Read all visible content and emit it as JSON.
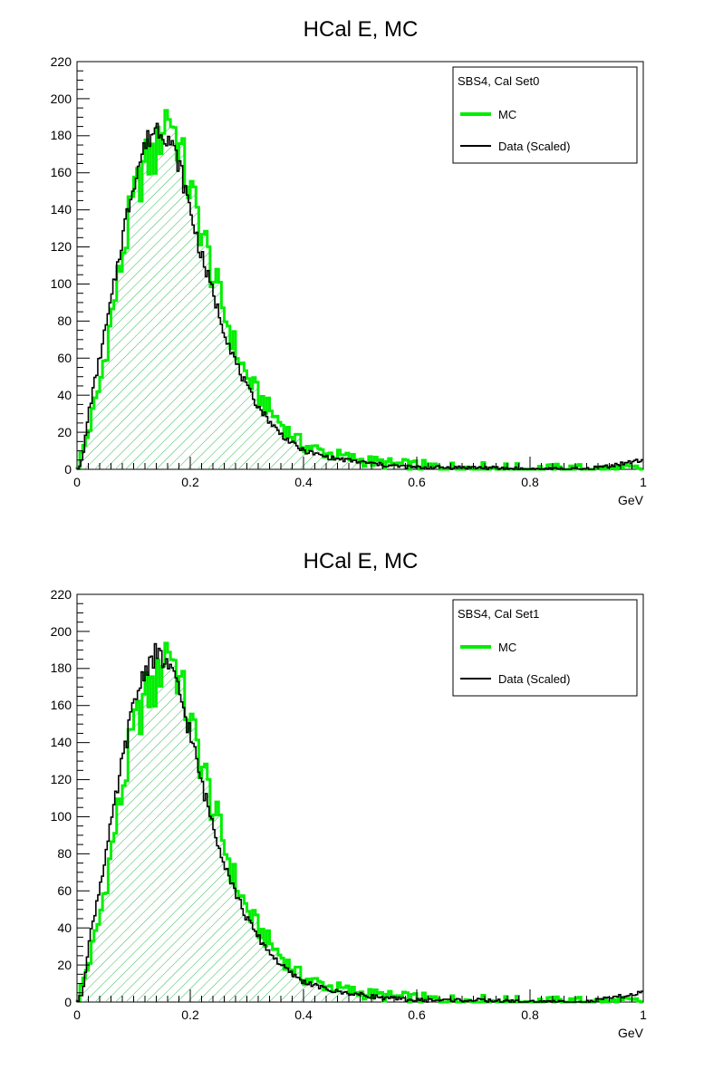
{
  "chart_data": [
    {
      "type": "histogram",
      "title": "HCal E, MC",
      "xlabel": "GeV",
      "ylabel": "",
      "xlim": [
        0,
        1
      ],
      "ylim": [
        0,
        220
      ],
      "xticks": [
        "0",
        "0.2",
        "0.4",
        "0.6",
        "0.8",
        "1"
      ],
      "yticks": [
        "0",
        "20",
        "40",
        "60",
        "80",
        "100",
        "120",
        "140",
        "160",
        "180",
        "200",
        "220"
      ],
      "legend": {
        "placement": "top-right",
        "header": "SBS4, Cal Set0",
        "entries": [
          {
            "label": "MC",
            "color": "#00ee00"
          },
          {
            "label": "Data (Scaled)",
            "color": "#000000"
          }
        ]
      },
      "series": [
        {
          "name": "MC",
          "color": "#00ee00",
          "fill": "hatched-green",
          "x": [
            0.0,
            0.02,
            0.04,
            0.06,
            0.08,
            0.1,
            0.12,
            0.14,
            0.16,
            0.18,
            0.2,
            0.22,
            0.24,
            0.26,
            0.28,
            0.3,
            0.32,
            0.34,
            0.36,
            0.38,
            0.4,
            0.45,
            0.5,
            0.55,
            0.6,
            0.65,
            0.7,
            0.8,
            0.9,
            1.0
          ],
          "y": [
            0,
            20,
            45,
            80,
            115,
            145,
            165,
            170,
            195,
            175,
            150,
            130,
            105,
            85,
            65,
            50,
            40,
            32,
            25,
            18,
            13,
            8,
            5,
            3,
            2,
            1,
            1,
            0,
            0,
            0
          ]
        },
        {
          "name": "Data (Scaled)",
          "color": "#000000",
          "x": [
            0.0,
            0.01,
            0.02,
            0.04,
            0.06,
            0.08,
            0.1,
            0.12,
            0.14,
            0.16,
            0.18,
            0.2,
            0.22,
            0.24,
            0.26,
            0.28,
            0.3,
            0.32,
            0.34,
            0.36,
            0.38,
            0.4,
            0.45,
            0.5,
            0.55,
            0.6,
            0.65,
            0.7,
            0.8,
            0.9,
            1.0
          ],
          "y": [
            0,
            5,
            30,
            60,
            90,
            125,
            155,
            175,
            185,
            180,
            165,
            140,
            115,
            95,
            75,
            58,
            44,
            34,
            26,
            19,
            14,
            10,
            6,
            4,
            2,
            1,
            1,
            1,
            0,
            0,
            5
          ]
        }
      ]
    },
    {
      "type": "histogram",
      "title": "HCal E, MC",
      "xlabel": "GeV",
      "ylabel": "",
      "xlim": [
        0,
        1
      ],
      "ylim": [
        0,
        220
      ],
      "xticks": [
        "0",
        "0.2",
        "0.4",
        "0.6",
        "0.8",
        "1"
      ],
      "yticks": [
        "0",
        "20",
        "40",
        "60",
        "80",
        "100",
        "120",
        "140",
        "160",
        "180",
        "200",
        "220"
      ],
      "legend": {
        "placement": "top-right",
        "header": "SBS4, Cal Set1",
        "entries": [
          {
            "label": "MC",
            "color": "#00ee00"
          },
          {
            "label": "Data (Scaled)",
            "color": "#000000"
          }
        ]
      },
      "series": [
        {
          "name": "MC",
          "color": "#00ee00",
          "fill": "hatched-green",
          "x": [
            0.0,
            0.02,
            0.04,
            0.06,
            0.08,
            0.1,
            0.12,
            0.14,
            0.16,
            0.18,
            0.2,
            0.22,
            0.24,
            0.26,
            0.28,
            0.3,
            0.32,
            0.34,
            0.36,
            0.38,
            0.4,
            0.45,
            0.5,
            0.55,
            0.6,
            0.65,
            0.7,
            0.8,
            0.9,
            1.0
          ],
          "y": [
            0,
            20,
            45,
            80,
            115,
            145,
            165,
            170,
            195,
            175,
            150,
            130,
            105,
            85,
            65,
            50,
            40,
            32,
            25,
            18,
            13,
            8,
            5,
            3,
            2,
            1,
            1,
            0,
            0,
            0
          ]
        },
        {
          "name": "Data (Scaled)",
          "color": "#000000",
          "x": [
            0.0,
            0.01,
            0.02,
            0.04,
            0.06,
            0.08,
            0.1,
            0.12,
            0.14,
            0.16,
            0.18,
            0.2,
            0.22,
            0.24,
            0.26,
            0.28,
            0.3,
            0.32,
            0.34,
            0.36,
            0.38,
            0.4,
            0.45,
            0.5,
            0.55,
            0.6,
            0.65,
            0.7,
            0.8,
            0.9,
            1.0
          ],
          "y": [
            0,
            5,
            30,
            62,
            95,
            130,
            160,
            180,
            188,
            182,
            168,
            145,
            118,
            96,
            76,
            59,
            45,
            35,
            27,
            20,
            15,
            11,
            6,
            4,
            2,
            1,
            1,
            1,
            0,
            0,
            5
          ]
        }
      ]
    }
  ]
}
